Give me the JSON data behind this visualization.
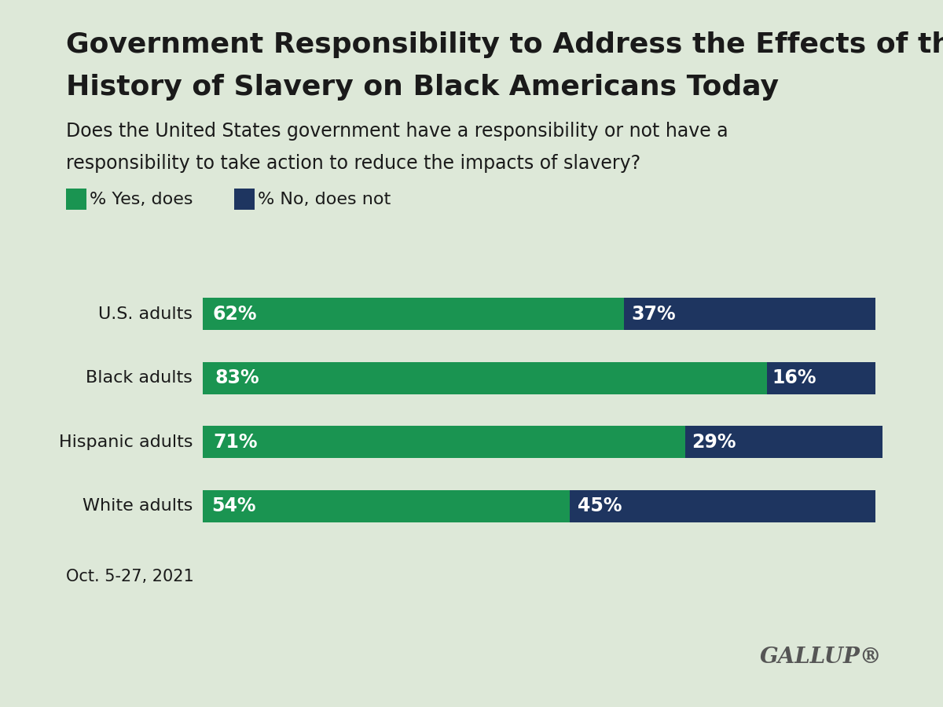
{
  "title_line1": "Government Responsibility to Address the Effects of the",
  "title_line2": "History of Slavery on Black Americans Today",
  "subtitle_line1": "Does the United States government have a responsibility or not have a",
  "subtitle_line2": "responsibility to take action to reduce the impacts of slavery?",
  "categories": [
    "U.S. adults",
    "Black adults",
    "Hispanic adults",
    "White adults"
  ],
  "yes_values": [
    62,
    83,
    71,
    54
  ],
  "no_values": [
    37,
    16,
    29,
    45
  ],
  "yes_color": "#1a9451",
  "no_color": "#1e3560",
  "background_color": "#dde8d8",
  "text_color": "#1a1a1a",
  "bar_label_color": "#ffffff",
  "legend_yes_label": "% Yes, does",
  "legend_no_label": "% No, does not",
  "date_note": "Oct. 5-27, 2021",
  "gallup_label": "GALLUP®",
  "title_fontsize": 26,
  "subtitle_fontsize": 17,
  "bar_label_fontsize": 17,
  "legend_fontsize": 16,
  "category_fontsize": 16,
  "date_fontsize": 15,
  "gallup_fontsize": 20
}
